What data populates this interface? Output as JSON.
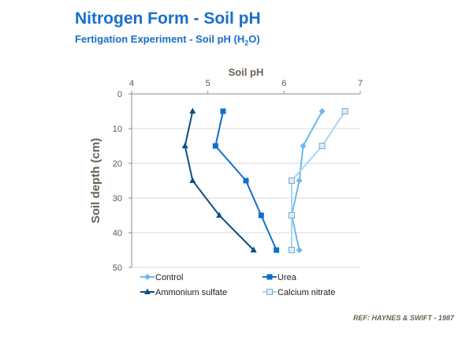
{
  "title": "Nitrogen Form - Soil pH",
  "subtitle": {
    "text": "Fertigation Experiment - Soil pH (H",
    "subscript": "2",
    "suffix": "O)"
  },
  "reference": "REF:  HAYNES & SWIFT - 1987",
  "colors": {
    "title": "#1a6fc9",
    "control": "#6ab8ee",
    "urea": "#0f6fcf",
    "ammonium_sulfate": "#0c4f82",
    "calcium_nitrate": "#a9d4f2",
    "axis_label": "#6b6155"
  },
  "chart_data": {
    "type": "line",
    "title": "Soil pH",
    "xlabel": "Soil pH",
    "ylabel": "Soil depth  (cm)",
    "xlim": [
      4,
      7
    ],
    "ylim": [
      0,
      50
    ],
    "y_inverted": true,
    "x_axis_position": "top",
    "xticks": [
      4,
      5,
      6,
      7
    ],
    "yticks": [
      0,
      10,
      20,
      30,
      40,
      50
    ],
    "grid": "horizontal",
    "legend_position": "bottom",
    "series": [
      {
        "name": "Control",
        "marker": "diamond",
        "color_key": "control",
        "points": [
          [
            6.5,
            5
          ],
          [
            6.25,
            15
          ],
          [
            6.2,
            25
          ],
          [
            6.1,
            35
          ],
          [
            6.2,
            45
          ]
        ]
      },
      {
        "name": "Urea",
        "marker": "square",
        "color_key": "urea",
        "points": [
          [
            5.2,
            5
          ],
          [
            5.1,
            15
          ],
          [
            5.5,
            25
          ],
          [
            5.7,
            35
          ],
          [
            5.9,
            45
          ]
        ]
      },
      {
        "name": "Ammonium sulfate",
        "marker": "triangle",
        "color_key": "ammonium_sulfate",
        "points": [
          [
            4.8,
            5
          ],
          [
            4.7,
            15
          ],
          [
            4.8,
            25
          ],
          [
            5.15,
            35
          ],
          [
            5.6,
            45
          ]
        ]
      },
      {
        "name": "Calcium nitrate",
        "marker": "square-open",
        "color_key": "calcium_nitrate",
        "points": [
          [
            6.8,
            5
          ],
          [
            6.5,
            15
          ],
          [
            6.1,
            25
          ],
          [
            6.1,
            35
          ],
          [
            6.1,
            45
          ]
        ]
      }
    ]
  }
}
